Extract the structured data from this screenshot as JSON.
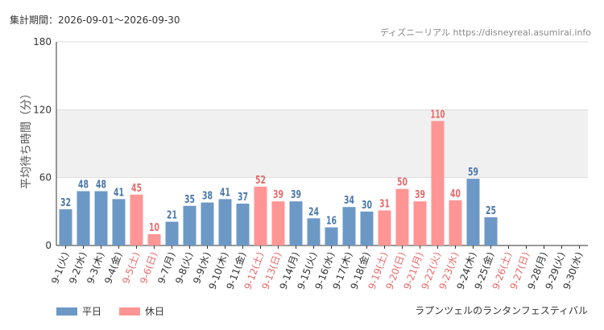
{
  "header": {
    "period": "集計期間：2026-09-01～2026-09-30",
    "source": "ディズニーリアル https://disneyreal.asumirai.info"
  },
  "footer": {
    "attraction": "ラプンツェルのランタンフェスティバル"
  },
  "legend": [
    {
      "label": "平日",
      "color": "#6c98c6"
    },
    {
      "label": "休日",
      "color": "#ff9595"
    }
  ],
  "colors": {
    "weekday": "#6c98c6",
    "holiday": "#ff9595",
    "weekday_text": "#4a78aa",
    "holiday_text": "#e86a6a",
    "band": "#f0f0f0",
    "grid": "#dddddd",
    "axis": "#333333"
  },
  "chart_data": {
    "type": "bar",
    "ylabel": "平均待ち時間（分）",
    "ylim": [
      0,
      180
    ],
    "yticks": [
      0,
      60,
      120,
      180
    ],
    "categories": [
      "9-1(火)",
      "9-2(水)",
      "9-3(木)",
      "9-4(金)",
      "9-5(土)",
      "9-6(日)",
      "9-7(月)",
      "9-8(火)",
      "9-9(水)",
      "9-10(木)",
      "9-11(金)",
      "9-12(土)",
      "9-13(日)",
      "9-14(月)",
      "9-15(火)",
      "9-16(水)",
      "9-17(木)",
      "9-18(金)",
      "9-19(土)",
      "9-20(日)",
      "9-21(月)",
      "9-22(火)",
      "9-23(水)",
      "9-24(木)",
      "9-25(金)",
      "9-26(土)",
      "9-27(日)",
      "9-28(月)",
      "9-29(火)",
      "9-30(水)"
    ],
    "values": [
      32,
      48,
      48,
      41,
      45,
      10,
      21,
      35,
      38,
      41,
      37,
      52,
      39,
      39,
      24,
      16,
      34,
      30,
      31,
      50,
      39,
      110,
      40,
      59,
      25,
      null,
      null,
      null,
      null,
      null
    ],
    "day_type": [
      "平日",
      "平日",
      "平日",
      "平日",
      "休日",
      "休日",
      "平日",
      "平日",
      "平日",
      "平日",
      "平日",
      "休日",
      "休日",
      "平日",
      "平日",
      "平日",
      "平日",
      "平日",
      "休日",
      "休日",
      "休日",
      "休日",
      "休日",
      "平日",
      "平日",
      "休日",
      "休日",
      "平日",
      "平日",
      "平日"
    ],
    "band_range": [
      60,
      120
    ],
    "legend_position": "bottom-left"
  }
}
